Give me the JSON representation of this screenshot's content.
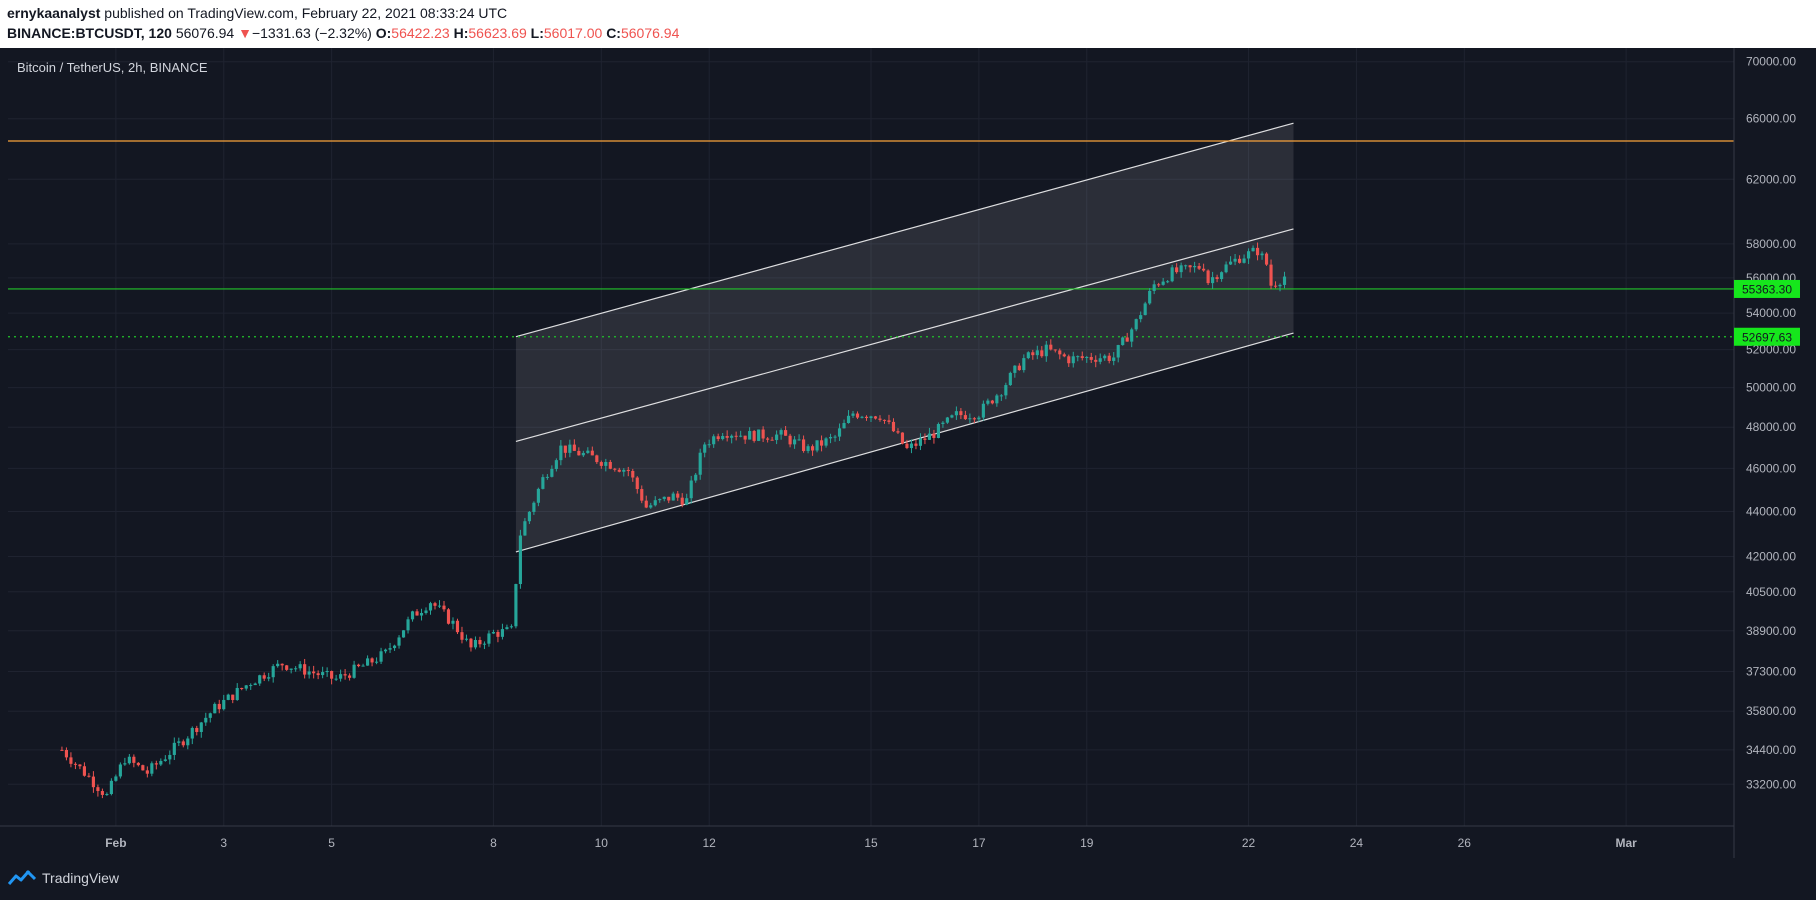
{
  "header": {
    "author": "ernykaanalyst",
    "published_text": " published on TradingView.com, February 22, 2021 08:33:24 UTC",
    "symbol": "BINANCE:BTCUSDT, 120",
    "last_price": "56076.94",
    "change_arrow": "▼",
    "change": "−1331.63 (−2.32%)",
    "o_label": "O:",
    "o_value": "56422.23",
    "h_label": "H:",
    "h_value": "56623.69",
    "l_label": "L:",
    "l_value": "56017.00",
    "c_label": "C:",
    "c_value": "56076.94"
  },
  "footer": {
    "brand": "TradingView",
    "logo_icon": "tradingview-logo-icon"
  },
  "colors": {
    "background": "#131722",
    "grid": "#1f2330",
    "up": "#26a69a",
    "down": "#ef5350",
    "resistance": "#f7a23b",
    "support": "#22c32a",
    "label_bg": "#16e61c",
    "channel": "#ffffff",
    "axis_text": "#b2b5be"
  },
  "chart_data": {
    "type": "candlestick",
    "title": "Bitcoin / TetherUS, 2h, BINANCE",
    "y_scale": "log",
    "ylim": [
      31800,
      71000
    ],
    "xlim": [
      "2021-01-30",
      "2021-03-03"
    ],
    "y_ticks": [
      "70000.00",
      "66000.00",
      "62000.00",
      "58000.00",
      "56000.00",
      "54000.00",
      "52000.00",
      "50000.00",
      "48000.00",
      "46000.00",
      "44000.00",
      "42000.00",
      "40500.00",
      "38900.00",
      "37300.00",
      "35800.00",
      "34400.00",
      "33200.00"
    ],
    "x_ticks": [
      {
        "date": "2021-02-01",
        "label": "Feb"
      },
      {
        "date": "2021-02-03",
        "label": "3"
      },
      {
        "date": "2021-02-05",
        "label": "5"
      },
      {
        "date": "2021-02-08",
        "label": "8"
      },
      {
        "date": "2021-02-10",
        "label": "10"
      },
      {
        "date": "2021-02-12",
        "label": "12"
      },
      {
        "date": "2021-02-15",
        "label": "15"
      },
      {
        "date": "2021-02-17",
        "label": "17"
      },
      {
        "date": "2021-02-19",
        "label": "19"
      },
      {
        "date": "2021-02-22",
        "label": "22"
      },
      {
        "date": "2021-02-24",
        "label": "24"
      },
      {
        "date": "2021-02-26",
        "label": "26"
      },
      {
        "date": "2021-03-01",
        "label": "Mar"
      }
    ],
    "horizontal_lines": [
      {
        "name": "resistance",
        "price": 64500,
        "style": "solid",
        "color": "#f7a23b"
      },
      {
        "name": "support-solid",
        "price": 55363.3,
        "label": "55363.30",
        "style": "solid",
        "color": "#22c32a"
      },
      {
        "name": "support-dotted",
        "price": 52697.63,
        "label": "52697.63",
        "style": "dotted",
        "color": "#22c32a"
      }
    ],
    "channel": {
      "start_date": "2021-02-08T10:00",
      "end_date": "2021-02-22T20:00",
      "upper": [
        52700,
        65700
      ],
      "middle": [
        47300,
        58900
      ],
      "lower": [
        42200,
        52900
      ]
    },
    "candles_anchor_start": "2021-01-31T00:00",
    "candle_interval_hours": 2,
    "close_anchors": [
      [
        "2021-01-31T00:00",
        34400
      ],
      [
        "2021-01-31T20:00",
        32800
      ],
      [
        "2021-02-01T04:00",
        34100
      ],
      [
        "2021-02-01T14:00",
        33600
      ],
      [
        "2021-02-02T04:00",
        34600
      ],
      [
        "2021-02-02T20:00",
        35900
      ],
      [
        "2021-02-03T12:00",
        36900
      ],
      [
        "2021-02-04T02:00",
        37600
      ],
      [
        "2021-02-04T14:00",
        37300
      ],
      [
        "2021-02-05T02:00",
        37000
      ],
      [
        "2021-02-05T16:00",
        37600
      ],
      [
        "2021-02-06T00:00",
        38000
      ],
      [
        "2021-02-06T12:00",
        39500
      ],
      [
        "2021-02-06T20:00",
        40100
      ],
      [
        "2021-02-07T06:00",
        39200
      ],
      [
        "2021-02-07T14:00",
        38200
      ],
      [
        "2021-02-08T00:00",
        38800
      ],
      [
        "2021-02-08T08:00",
        38900
      ],
      [
        "2021-02-08T12:00",
        43000
      ],
      [
        "2021-02-08T22:00",
        45500
      ],
      [
        "2021-02-09T06:00",
        47000
      ],
      [
        "2021-02-09T18:00",
        46600
      ],
      [
        "2021-02-10T12:00",
        45900
      ],
      [
        "2021-02-10T20:00",
        44200
      ],
      [
        "2021-02-11T08:00",
        44700
      ],
      [
        "2021-02-11T14:00",
        44500
      ],
      [
        "2021-02-11T22:00",
        47200
      ],
      [
        "2021-02-12T06:00",
        47800
      ],
      [
        "2021-02-12T16:00",
        47600
      ],
      [
        "2021-02-13T08:00",
        47600
      ],
      [
        "2021-02-13T20:00",
        46900
      ],
      [
        "2021-02-14T08:00",
        47500
      ],
      [
        "2021-02-14T16:00",
        48700
      ],
      [
        "2021-02-15T04:00",
        48600
      ],
      [
        "2021-02-15T10:00",
        47800
      ],
      [
        "2021-02-15T16:00",
        46900
      ],
      [
        "2021-02-16T04:00",
        47700
      ],
      [
        "2021-02-16T14:00",
        48600
      ],
      [
        "2021-02-17T00:00",
        48700
      ],
      [
        "2021-02-17T10:00",
        49900
      ],
      [
        "2021-02-17T20:00",
        51500
      ],
      [
        "2021-02-18T06:00",
        52000
      ],
      [
        "2021-02-18T16:00",
        51500
      ],
      [
        "2021-02-19T04:00",
        51600
      ],
      [
        "2021-02-19T12:00",
        51600
      ],
      [
        "2021-02-19T22:00",
        53500
      ],
      [
        "2021-02-20T06:00",
        55600
      ],
      [
        "2021-02-20T14:00",
        56300
      ],
      [
        "2021-02-20T22:00",
        56500
      ],
      [
        "2021-02-21T04:00",
        56700
      ],
      [
        "2021-02-21T06:00",
        55800
      ],
      [
        "2021-02-21T12:00",
        56500
      ],
      [
        "2021-02-21T20:00",
        57200
      ],
      [
        "2021-02-22T04:00",
        57600
      ],
      [
        "2021-02-22T08:00",
        56800
      ],
      [
        "2021-02-22T10:00",
        55600
      ],
      [
        "2021-02-22T16:00",
        56076.94
      ]
    ]
  }
}
